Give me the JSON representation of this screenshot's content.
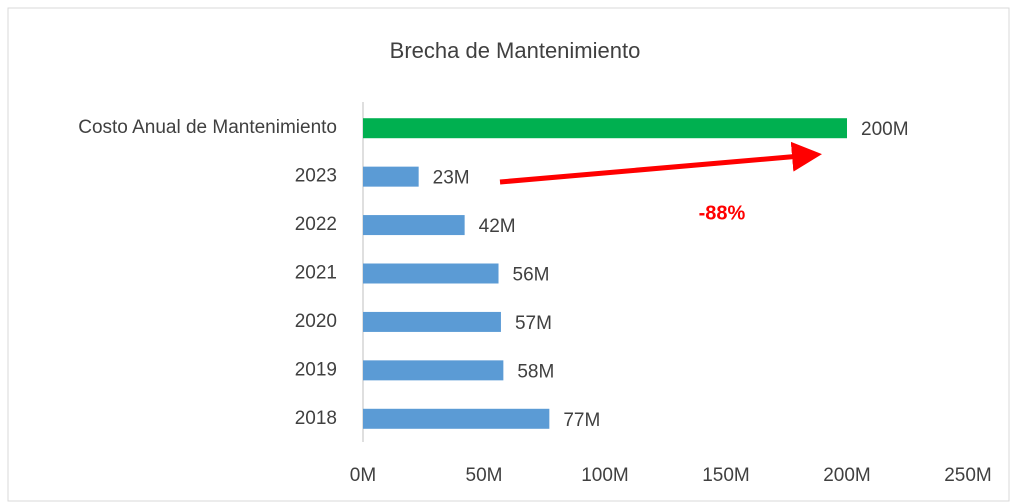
{
  "chart_data": {
    "type": "bar",
    "orientation": "horizontal",
    "title": "Brecha de Mantenimiento",
    "categories": [
      "Costo Anual de Mantenimiento",
      "2023",
      "2022",
      "2021",
      "2020",
      "2019",
      "2018"
    ],
    "values": [
      200,
      23,
      42,
      56,
      57,
      58,
      77
    ],
    "value_labels": [
      "200M",
      "23M",
      "42M",
      "56M",
      "57M",
      "58M",
      "77M"
    ],
    "colors": [
      "#00b050",
      "#5b9bd5",
      "#5b9bd5",
      "#5b9bd5",
      "#5b9bd5",
      "#5b9bd5",
      "#5b9bd5"
    ],
    "xlim": [
      0,
      250
    ],
    "xticks": [
      {
        "value": 0,
        "label": "0M"
      },
      {
        "value": 50,
        "label": "50M"
      },
      {
        "value": 100,
        "label": "100M"
      },
      {
        "value": 150,
        "label": "150M"
      },
      {
        "value": 200,
        "label": "200M"
      },
      {
        "value": 250,
        "label": "250M"
      }
    ],
    "annotation": "-88%"
  }
}
